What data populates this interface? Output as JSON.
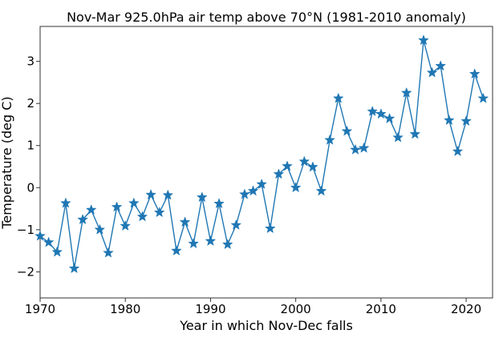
{
  "chart_data": {
    "type": "line",
    "title": "Nov-Mar 925.0hPa air temp above 70°N (1981-2010 anomaly)",
    "xlabel": "Year in which Nov-Dec falls",
    "ylabel": "Temperature (deg C)",
    "xlim": [
      1970,
      2023.1
    ],
    "ylim": [
      -2.62,
      3.83
    ],
    "xticks": [
      1970,
      1980,
      1990,
      2000,
      2010,
      2020
    ],
    "yticks": [
      -2,
      -1,
      0,
      1,
      2,
      3
    ],
    "xtick_labels": [
      "1970",
      "1980",
      "1990",
      "2000",
      "2010",
      "2020"
    ],
    "ytick_labels": [
      "−2",
      "−1",
      "0",
      "1",
      "2",
      "3"
    ],
    "grid": false,
    "marker": "star",
    "color": "#1f77b4",
    "x": [
      1970,
      1971,
      1972,
      1973,
      1974,
      1975,
      1976,
      1977,
      1978,
      1979,
      1980,
      1981,
      1982,
      1983,
      1984,
      1985,
      1986,
      1987,
      1988,
      1989,
      1990,
      1991,
      1992,
      1993,
      1994,
      1995,
      1996,
      1997,
      1998,
      1999,
      2000,
      2001,
      2002,
      2003,
      2004,
      2005,
      2006,
      2007,
      2008,
      2009,
      2010,
      2011,
      2012,
      2013,
      2014,
      2015,
      2016,
      2017,
      2018,
      2019,
      2020,
      2021,
      2022
    ],
    "y": [
      -1.15,
      -1.3,
      -1.53,
      -0.37,
      -1.92,
      -0.76,
      -0.53,
      -1.0,
      -1.55,
      -0.46,
      -0.91,
      -0.37,
      -0.69,
      -0.17,
      -0.59,
      -0.18,
      -1.5,
      -0.82,
      -1.33,
      -0.23,
      -1.27,
      -0.38,
      -1.35,
      -0.89,
      -0.16,
      -0.08,
      0.08,
      -0.97,
      0.32,
      0.51,
      0.0,
      0.62,
      0.49,
      -0.08,
      1.13,
      2.12,
      1.34,
      0.9,
      0.94,
      1.81,
      1.75,
      1.64,
      1.19,
      2.25,
      1.27,
      3.5,
      2.73,
      2.89,
      1.6,
      0.86,
      1.58,
      2.7,
      2.12
    ]
  }
}
